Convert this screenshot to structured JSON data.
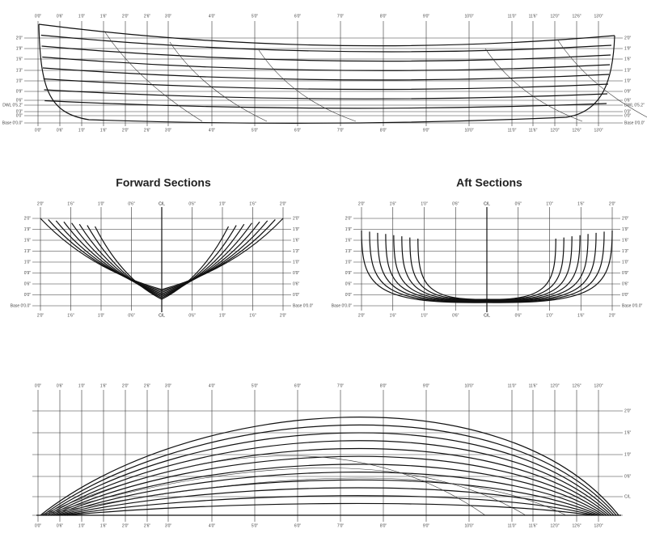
{
  "sections": {
    "forward_title": "Forward Sections",
    "aft_title": "Aft Sections"
  },
  "stations": [
    "0'0\"",
    "0'6\"",
    "1'0\"",
    "1'6\"",
    "2'0\"",
    "2'6\"",
    "3'0\"",
    "4'0\"",
    "5'0\"",
    "6'0\"",
    "7'0\"",
    "8'0\"",
    "9'0\"",
    "10'0\"",
    "11'0\"",
    "11'6\"",
    "12'0\"",
    "12'6\"",
    "13'0\""
  ],
  "waterlines": [
    "2'0\"",
    "1'9\"",
    "1'6\"",
    "1'3\"",
    "1'0\"",
    "0'9\"",
    "0'6\"",
    "DWL 0'5.2\"",
    "0'3\"",
    "0'0\"",
    "Base 0'0.0\""
  ],
  "section_stations": [
    "2'0\"",
    "1'6\"",
    "1'0\"",
    "0'6\"",
    "C/L"
  ],
  "plan_offsets": [
    "2'0\"",
    "1'6\"",
    "1'0\"",
    "0'6\"",
    "C/L"
  ]
}
